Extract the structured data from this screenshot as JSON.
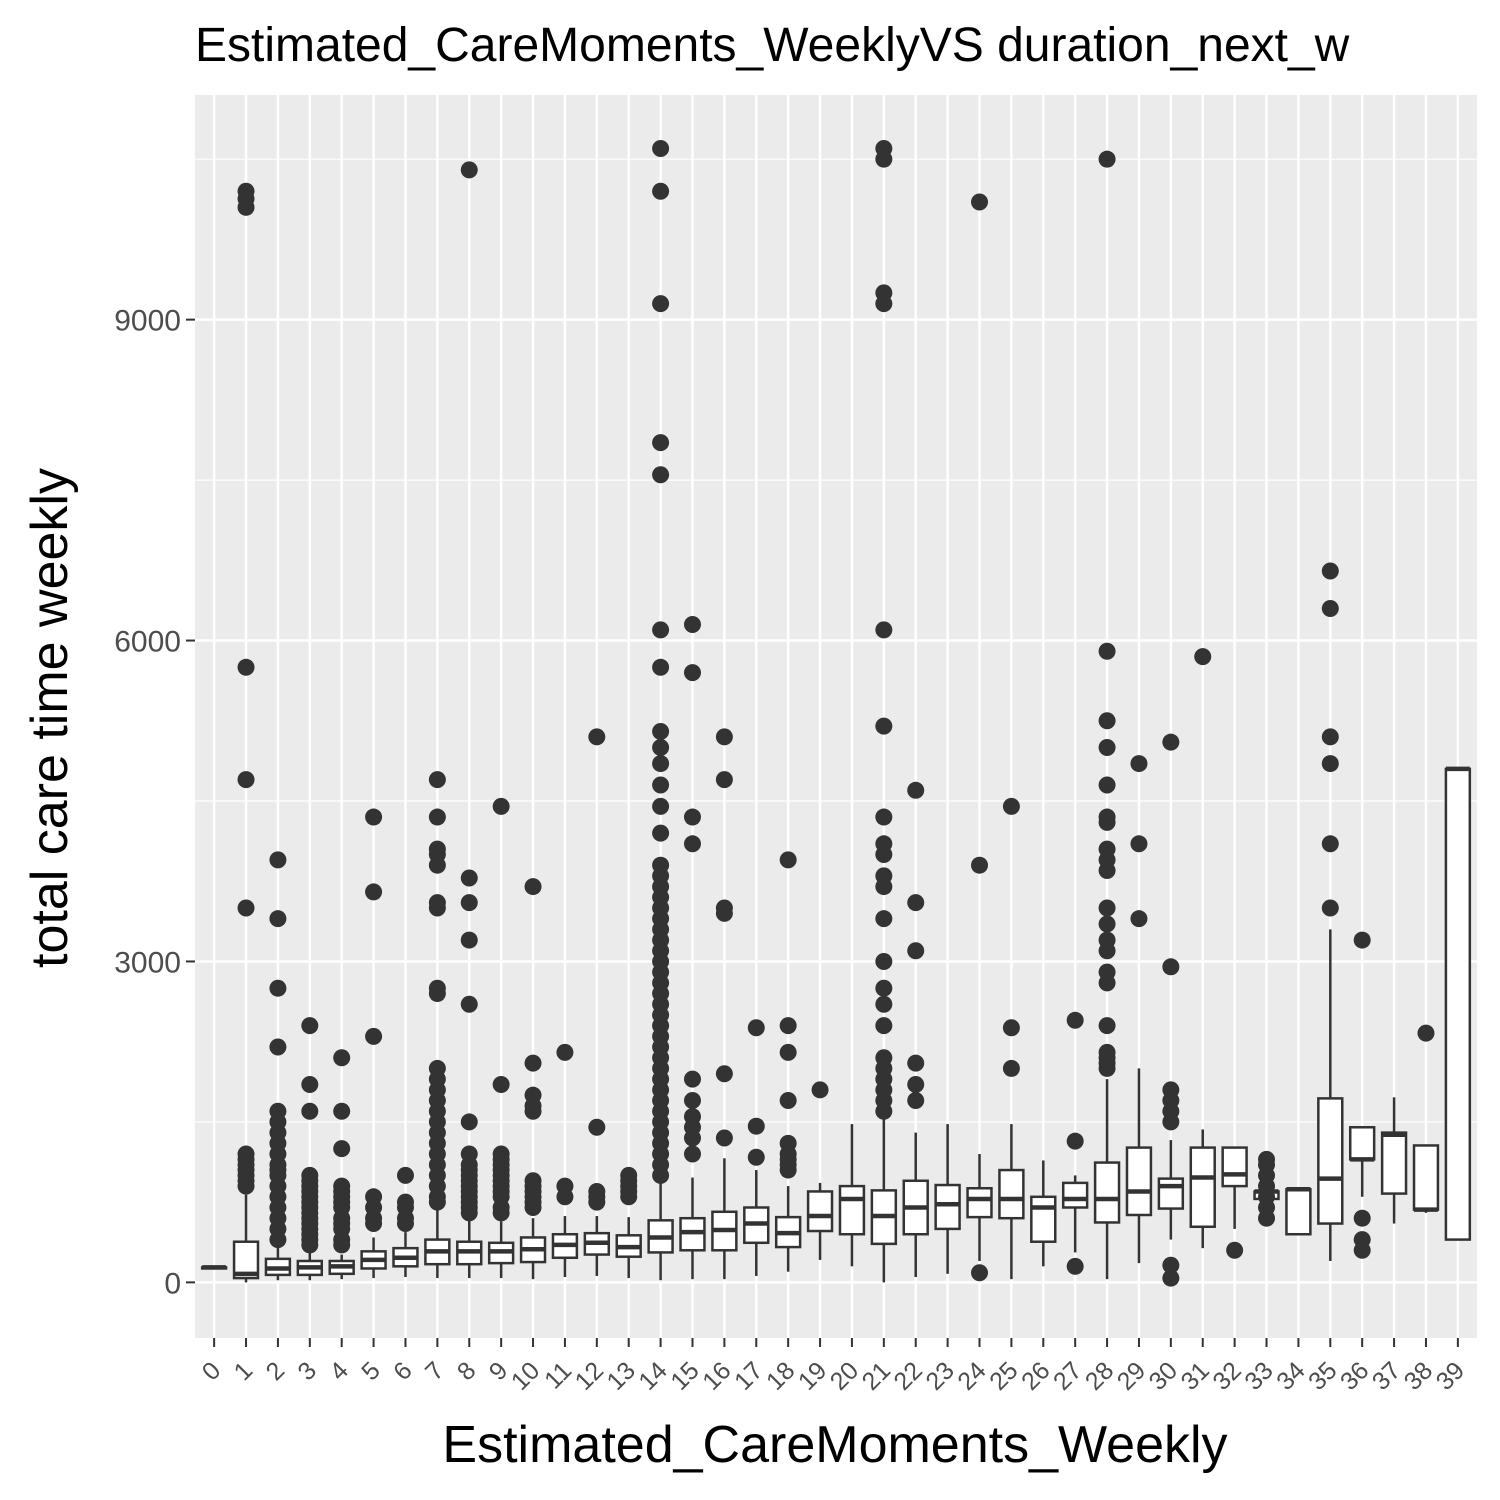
{
  "chart_data": {
    "type": "box",
    "title": "Estimated_CareMoments_WeeklyVS duration_next_w",
    "xlabel": "Estimated_CareMoments_Weekly",
    "ylabel": "total care time weekly",
    "ylim": [
      -520,
      11100
    ],
    "y_ticks": [
      0,
      3000,
      6000,
      9000
    ],
    "grid": true,
    "panel_background": "#ebebeb",
    "box_color": "#333333",
    "categories": [
      "0",
      "1",
      "2",
      "3",
      "4",
      "5",
      "6",
      "7",
      "8",
      "9",
      "10",
      "11",
      "12",
      "13",
      "14",
      "15",
      "16",
      "17",
      "18",
      "19",
      "20",
      "21",
      "22",
      "23",
      "24",
      "25",
      "26",
      "27",
      "28",
      "29",
      "30",
      "31",
      "32",
      "33",
      "34",
      "35",
      "36",
      "37",
      "38",
      "39"
    ],
    "boxes": [
      {
        "x": "0",
        "lower": 140,
        "q1": 140,
        "median": 140,
        "q3": 140,
        "upper": 140,
        "outliers": []
      },
      {
        "x": "1",
        "lower": 0,
        "q1": 40,
        "median": 80,
        "q3": 380,
        "upper": 820,
        "outliers": [
          900,
          950,
          1000,
          1050,
          1100,
          1150,
          1200,
          3500,
          4700,
          5750,
          10050,
          10130,
          10200
        ]
      },
      {
        "x": "2",
        "lower": 20,
        "q1": 70,
        "median": 130,
        "q3": 220,
        "upper": 350,
        "outliers": [
          400,
          500,
          600,
          700,
          800,
          900,
          1000,
          1050,
          1100,
          1200,
          1300,
          1400,
          1500,
          1600,
          2200,
          2750,
          3400,
          3950
        ]
      },
      {
        "x": "3",
        "lower": 20,
        "q1": 70,
        "median": 140,
        "q3": 200,
        "upper": 280,
        "outliers": [
          350,
          400,
          450,
          500,
          550,
          600,
          650,
          700,
          750,
          800,
          850,
          900,
          950,
          1000,
          1600,
          1850,
          2400
        ]
      },
      {
        "x": "4",
        "lower": 30,
        "q1": 80,
        "median": 150,
        "q3": 200,
        "upper": 260,
        "outliers": [
          350,
          400,
          500,
          550,
          600,
          700,
          750,
          800,
          850,
          900,
          1250,
          1600,
          2100
        ]
      },
      {
        "x": "5",
        "lower": 40,
        "q1": 130,
        "median": 210,
        "q3": 290,
        "upper": 420,
        "outliers": [
          550,
          600,
          700,
          800,
          2300,
          3650,
          4350
        ]
      },
      {
        "x": "6",
        "lower": 50,
        "q1": 150,
        "median": 230,
        "q3": 320,
        "upper": 470,
        "outliers": [
          550,
          600,
          700,
          750,
          1000
        ]
      },
      {
        "x": "7",
        "lower": 40,
        "q1": 170,
        "median": 290,
        "q3": 400,
        "upper": 680,
        "outliers": [
          750,
          800,
          900,
          1000,
          1100,
          1200,
          1300,
          1400,
          1500,
          1600,
          1700,
          1800,
          1900,
          2000,
          2700,
          2750,
          3500,
          3550,
          3900,
          4000,
          4050,
          4350,
          4700
        ]
      },
      {
        "x": "8",
        "lower": 40,
        "q1": 170,
        "median": 290,
        "q3": 380,
        "upper": 600,
        "outliers": [
          650,
          700,
          750,
          800,
          850,
          900,
          950,
          1000,
          1050,
          1100,
          1200,
          1500,
          2600,
          3200,
          3550,
          3780,
          10400
        ]
      },
      {
        "x": "9",
        "lower": 40,
        "q1": 180,
        "median": 290,
        "q3": 370,
        "upper": 570,
        "outliers": [
          650,
          700,
          800,
          850,
          900,
          950,
          1000,
          1050,
          1100,
          1150,
          1200,
          1850,
          4450
        ]
      },
      {
        "x": "10",
        "lower": 30,
        "q1": 190,
        "median": 310,
        "q3": 420,
        "upper": 600,
        "outliers": [
          700,
          750,
          800,
          850,
          900,
          950,
          1600,
          1650,
          1750,
          2050,
          3700
        ]
      },
      {
        "x": "11",
        "lower": 50,
        "q1": 230,
        "median": 350,
        "q3": 450,
        "upper": 620,
        "outliers": [
          800,
          900,
          2150
        ]
      },
      {
        "x": "12",
        "lower": 60,
        "q1": 260,
        "median": 370,
        "q3": 460,
        "upper": 620,
        "outliers": [
          750,
          800,
          850,
          1450,
          5100
        ]
      },
      {
        "x": "13",
        "lower": 40,
        "q1": 240,
        "median": 330,
        "q3": 440,
        "upper": 610,
        "outliers": [
          800,
          850,
          900,
          950,
          1000
        ]
      },
      {
        "x": "14",
        "lower": 20,
        "q1": 280,
        "median": 420,
        "q3": 580,
        "upper": 950,
        "outliers": [
          1000,
          1100,
          1200,
          1300,
          1400,
          1500,
          1600,
          1700,
          1800,
          1900,
          2000,
          2100,
          2200,
          2300,
          2400,
          2500,
          2600,
          2700,
          2800,
          2900,
          3000,
          3100,
          3200,
          3300,
          3400,
          3500,
          3600,
          3700,
          3800,
          3900,
          4200,
          4450,
          4650,
          4850,
          5000,
          5150,
          5750,
          6100,
          7550,
          7850,
          9150,
          10200,
          10600
        ]
      },
      {
        "x": "15",
        "lower": 30,
        "q1": 300,
        "median": 470,
        "q3": 600,
        "upper": 980,
        "outliers": [
          1200,
          1350,
          1450,
          1550,
          1700,
          1900,
          4100,
          4350,
          5700,
          6150
        ]
      },
      {
        "x": "16",
        "lower": 30,
        "q1": 300,
        "median": 490,
        "q3": 660,
        "upper": 1160,
        "outliers": [
          1350,
          1950,
          3450,
          3500,
          4700,
          5100
        ]
      },
      {
        "x": "17",
        "lower": 60,
        "q1": 370,
        "median": 550,
        "q3": 700,
        "upper": 1050,
        "outliers": [
          1170,
          1460,
          2380
        ]
      },
      {
        "x": "18",
        "lower": 100,
        "q1": 330,
        "median": 460,
        "q3": 610,
        "upper": 900,
        "outliers": [
          1050,
          1100,
          1150,
          1200,
          1300,
          1700,
          2150,
          2400,
          3950
        ]
      },
      {
        "x": "19",
        "lower": 210,
        "q1": 480,
        "median": 620,
        "q3": 850,
        "upper": 930,
        "outliers": [
          1800
        ]
      },
      {
        "x": "20",
        "lower": 150,
        "q1": 450,
        "median": 780,
        "q3": 900,
        "upper": 1480,
        "outliers": []
      },
      {
        "x": "21",
        "lower": 0,
        "q1": 360,
        "median": 620,
        "q3": 860,
        "upper": 1550,
        "outliers": [
          1600,
          1700,
          1800,
          1900,
          2000,
          2100,
          2400,
          2600,
          2750,
          3000,
          3400,
          3700,
          3800,
          4000,
          4100,
          4350,
          5200,
          6100,
          9150,
          9250,
          10500,
          10600
        ]
      },
      {
        "x": "22",
        "lower": 50,
        "q1": 450,
        "median": 700,
        "q3": 950,
        "upper": 1400,
        "outliers": [
          1700,
          1850,
          2050,
          3100,
          3550,
          4600
        ]
      },
      {
        "x": "23",
        "lower": 80,
        "q1": 500,
        "median": 730,
        "q3": 910,
        "upper": 1480,
        "outliers": []
      },
      {
        "x": "24",
        "lower": 200,
        "q1": 610,
        "median": 780,
        "q3": 880,
        "upper": 1200,
        "outliers": [
          90,
          3900,
          10100
        ]
      },
      {
        "x": "25",
        "lower": 30,
        "q1": 600,
        "median": 780,
        "q3": 1050,
        "upper": 1480,
        "outliers": [
          2000,
          2380,
          4450
        ]
      },
      {
        "x": "26",
        "lower": 150,
        "q1": 380,
        "median": 700,
        "q3": 800,
        "upper": 1140,
        "outliers": []
      },
      {
        "x": "27",
        "lower": 280,
        "q1": 700,
        "median": 780,
        "q3": 930,
        "upper": 1000,
        "outliers": [
          150,
          1320,
          2450
        ]
      },
      {
        "x": "28",
        "lower": 30,
        "q1": 560,
        "median": 780,
        "q3": 1120,
        "upper": 1900,
        "outliers": [
          2000,
          2050,
          2100,
          2150,
          2400,
          2800,
          2900,
          3100,
          3200,
          3350,
          3500,
          3850,
          3950,
          4050,
          4300,
          4350,
          4650,
          5000,
          5250,
          5900,
          10500
        ]
      },
      {
        "x": "29",
        "lower": 180,
        "q1": 630,
        "median": 850,
        "q3": 1260,
        "upper": 2000,
        "outliers": [
          3400,
          4100,
          4850
        ]
      },
      {
        "x": "30",
        "lower": 400,
        "q1": 690,
        "median": 900,
        "q3": 970,
        "upper": 1330,
        "outliers": [
          40,
          160,
          1500,
          1600,
          1700,
          1800,
          2950,
          5050
        ]
      },
      {
        "x": "31",
        "lower": 320,
        "q1": 520,
        "median": 980,
        "q3": 1260,
        "upper": 1430,
        "outliers": [
          5850
        ]
      },
      {
        "x": "32",
        "lower": 500,
        "q1": 900,
        "median": 1010,
        "q3": 1260,
        "upper": 1260,
        "outliers": [
          300
        ]
      },
      {
        "x": "33",
        "lower": 780,
        "q1": 780,
        "median": 850,
        "q3": 850,
        "upper": 850,
        "outliers": [
          600,
          700,
          800,
          900,
          1000,
          1100,
          1150
        ]
      },
      {
        "x": "34",
        "lower": 450,
        "q1": 450,
        "median": 870,
        "q3": 870,
        "upper": 870,
        "outliers": []
      },
      {
        "x": "35",
        "lower": 200,
        "q1": 550,
        "median": 970,
        "q3": 1720,
        "upper": 3300,
        "outliers": [
          3500,
          4100,
          4850,
          5100,
          6300,
          6650
        ]
      },
      {
        "x": "36",
        "lower": 800,
        "q1": 1150,
        "median": 1150,
        "q3": 1450,
        "upper": 1450,
        "outliers": [
          300,
          400,
          600,
          3200
        ]
      },
      {
        "x": "37",
        "lower": 550,
        "q1": 830,
        "median": 1380,
        "q3": 1400,
        "upper": 1730,
        "outliers": []
      },
      {
        "x": "38",
        "lower": 650,
        "q1": 680,
        "median": 680,
        "q3": 1280,
        "upper": 1280,
        "outliers": [
          2330
        ]
      },
      {
        "x": "39",
        "lower": 400,
        "q1": 400,
        "median": 4800,
        "q3": 4800,
        "upper": 4800,
        "outliers": []
      }
    ]
  }
}
